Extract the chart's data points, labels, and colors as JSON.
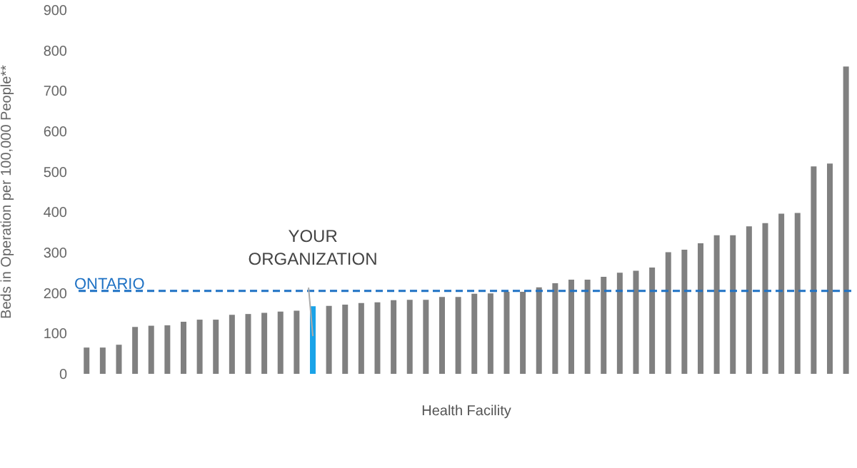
{
  "chart_data": {
    "type": "bar",
    "xlabel": "Health Facility",
    "ylabel": "Beds in Operation per 100,000 People**",
    "categories": [
      null,
      null,
      null,
      null,
      null,
      null,
      null,
      null,
      null,
      null,
      null,
      null,
      null,
      null,
      null,
      null,
      null,
      null,
      null,
      null,
      null,
      null,
      null,
      null,
      null,
      null,
      null,
      null,
      null,
      null,
      null,
      null,
      null,
      null,
      null,
      null,
      null,
      null,
      null,
      null,
      null,
      null,
      null,
      null,
      null,
      null,
      null,
      null
    ],
    "values": [
      65,
      65,
      72,
      116,
      119,
      120,
      129,
      134,
      134,
      146,
      148,
      151,
      154,
      156,
      167,
      168,
      171,
      175,
      177,
      182,
      183,
      183,
      190,
      190,
      198,
      199,
      203,
      203,
      214,
      224,
      233,
      233,
      240,
      250,
      255,
      263,
      301,
      307,
      323,
      343,
      343,
      365,
      373,
      396,
      398,
      513,
      520,
      760
    ],
    "colors": [
      "#808080",
      "#808080",
      "#808080",
      "#808080",
      "#808080",
      "#808080",
      "#808080",
      "#808080",
      "#808080",
      "#808080",
      "#808080",
      "#808080",
      "#808080",
      "#808080",
      "#1aa3e8",
      "#808080",
      "#808080",
      "#808080",
      "#808080",
      "#808080",
      "#808080",
      "#808080",
      "#808080",
      "#808080",
      "#808080",
      "#808080",
      "#808080",
      "#808080",
      "#808080",
      "#808080",
      "#808080",
      "#808080",
      "#808080",
      "#808080",
      "#808080",
      "#808080",
      "#808080",
      "#808080",
      "#808080",
      "#808080",
      "#808080",
      "#808080",
      "#808080",
      "#808080",
      "#808080",
      "#808080",
      "#808080",
      "#808080"
    ],
    "ylim": [
      0,
      900
    ],
    "yticks": [
      0,
      100,
      200,
      300,
      400,
      500,
      600,
      700,
      800,
      900
    ],
    "grid": false,
    "legend": false,
    "ref_lines": [
      {
        "axis": "y",
        "value": 205,
        "label": "ONTARIO",
        "color": "#1f72c4",
        "line_style": "dashed"
      }
    ],
    "annotations": [
      "YOUR ORGANIZATION"
    ]
  }
}
